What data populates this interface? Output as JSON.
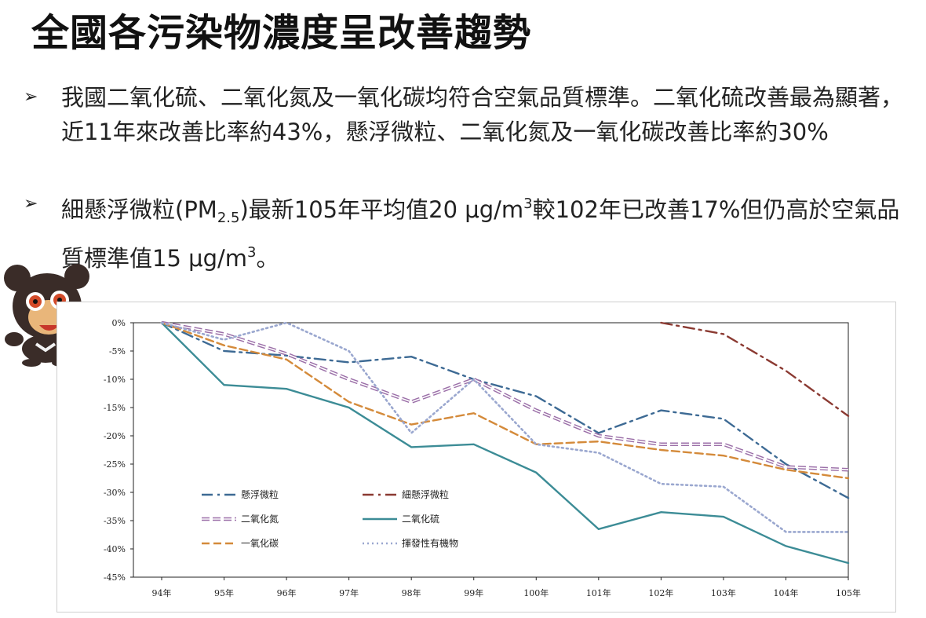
{
  "slide": {
    "title": "全國各污染物濃度呈改善趨勢",
    "bullet_symbol": "➢",
    "bullet1": "我國二氧化硫、二氧化氮及一氧化碳均符合空氣品質標準。二氧化硫改善最為顯著，近11年來改善比率約43%，懸浮微粒、二氧化氮及一氧化碳改善比率約30%",
    "bullet2_part1": "細懸浮微粒(PM",
    "bullet2_sub": "2.5",
    "bullet2_part2": ")最新105年平均值20  μg/m",
    "bullet2_sup1": "3",
    "bullet2_part3": "較102年已改善17%但仍高於空氣品質標準值15 μg/m",
    "bullet2_sup2": "3",
    "bullet2_part4": "。"
  },
  "chart_data": {
    "type": "line",
    "categories": [
      "94年",
      "95年",
      "96年",
      "97年",
      "98年",
      "99年",
      "100年",
      "101年",
      "102年",
      "103年",
      "104年",
      "105年"
    ],
    "yticks": [
      "0%",
      "-5%",
      "-10%",
      "-15%",
      "-20%",
      "-25%",
      "-30%",
      "-35%",
      "-40%",
      "-45%"
    ],
    "ylim": [
      -45,
      0
    ],
    "grid": false,
    "legend_position": "bottom-left",
    "series": [
      {
        "name": "懸浮微粒",
        "color": "#3d6a94",
        "dash": "dashdot",
        "values": [
          0,
          -5,
          -5.8,
          -7,
          -6,
          -10,
          -13,
          -19.5,
          -15.5,
          -17,
          -25,
          -31
        ]
      },
      {
        "name": "細懸浮微粒",
        "color": "#8b3a32",
        "dash": "dashdot",
        "values": [
          null,
          null,
          null,
          null,
          null,
          null,
          null,
          null,
          0,
          -2,
          -8.5,
          -16.5
        ]
      },
      {
        "name": "二氧化氮",
        "color": "#9b6fa8",
        "dash": "double",
        "values": [
          0,
          -2,
          -5.5,
          -10,
          -14,
          -10,
          -15.5,
          -20,
          -21.5,
          -21.5,
          -25.5,
          -26
        ]
      },
      {
        "name": "二氧化硫",
        "color": "#3c8c96",
        "dash": "solid",
        "values": [
          0,
          -11,
          -11.7,
          -15,
          -22,
          -21.5,
          -26.5,
          -36.5,
          -33.5,
          -34.3,
          -39.5,
          -42.5
        ]
      },
      {
        "name": "一氧化碳",
        "color": "#d48a3a",
        "dash": "dashed",
        "values": [
          0,
          -4,
          -6.5,
          -14,
          -18,
          -16,
          -21.5,
          -21,
          -22.5,
          -23.5,
          -26,
          -27.5
        ]
      },
      {
        "name": "揮發性有機物",
        "color": "#9aa7cf",
        "dash": "dotted",
        "values": [
          0,
          -3,
          0,
          -5,
          -19.5,
          -10,
          -21.5,
          -23,
          -28.5,
          -29,
          -37,
          -37
        ]
      }
    ]
  }
}
